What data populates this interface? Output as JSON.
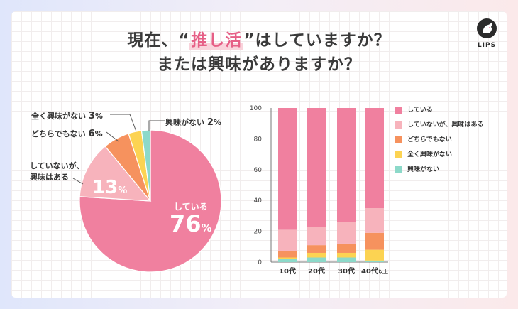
{
  "title_line1_pre": "現在、“",
  "title_highlight": "推し活",
  "title_line1_post": "”はしていますか？",
  "title_line2": "または興味がありますか？",
  "brand": {
    "name": "LIPS"
  },
  "colors": {
    "doing": "#f0809f",
    "interested": "#f7b3bc",
    "neither": "#f6925e",
    "not_interested": "#fcd352",
    "no_interest": "#8cd9c9"
  },
  "pie_labels": {
    "not_at_all_text": "全く興味がない",
    "not_at_all_val": "3",
    "neither_text": "どちらでもない",
    "neither_val": "6",
    "interested_text_1": "していないが、",
    "interested_text_2": "興味はある",
    "interested_val": "13",
    "no_interest_text": "興味がない",
    "no_interest_val": "2",
    "doing_text": "している",
    "doing_val": "76",
    "pct": "%"
  },
  "chart_data": [
    {
      "type": "pie",
      "title": "",
      "slices": [
        {
          "label": "している",
          "value": 76,
          "color": "#f0809f"
        },
        {
          "label": "していないが、興味はある",
          "value": 13,
          "color": "#f7b3bc"
        },
        {
          "label": "どちらでもない",
          "value": 6,
          "color": "#f6925e"
        },
        {
          "label": "全く興味がない",
          "value": 3,
          "color": "#fcd352"
        },
        {
          "label": "興味がない",
          "value": 2,
          "color": "#8cd9c9"
        }
      ]
    },
    {
      "type": "bar",
      "stacked": true,
      "categories": [
        "10代",
        "20代",
        "30代",
        "40代"
      ],
      "category_suffix": [
        "",
        "",
        "",
        "以上"
      ],
      "ylim": [
        0,
        100
      ],
      "yticks": [
        0,
        20,
        40,
        60,
        80,
        100
      ],
      "grid": false,
      "legend_position": "right",
      "series": [
        {
          "name": "興味がない",
          "color": "#8cd9c9",
          "values": [
            2,
            3,
            3,
            1
          ]
        },
        {
          "name": "全く興味がない",
          "color": "#fcd352",
          "values": [
            1,
            3,
            3,
            7
          ]
        },
        {
          "name": "どちらでもない",
          "color": "#f6925e",
          "values": [
            4,
            5,
            6,
            11
          ]
        },
        {
          "name": "していないが、興味はある",
          "color": "#f7b3bc",
          "values": [
            14,
            12,
            14,
            16
          ]
        },
        {
          "name": "している",
          "color": "#f0809f",
          "values": [
            79,
            77,
            74,
            65
          ]
        }
      ],
      "legend_order": [
        "している",
        "していないが、興味はある",
        "どちらでもない",
        "全く興味がない",
        "興味がない"
      ]
    }
  ]
}
